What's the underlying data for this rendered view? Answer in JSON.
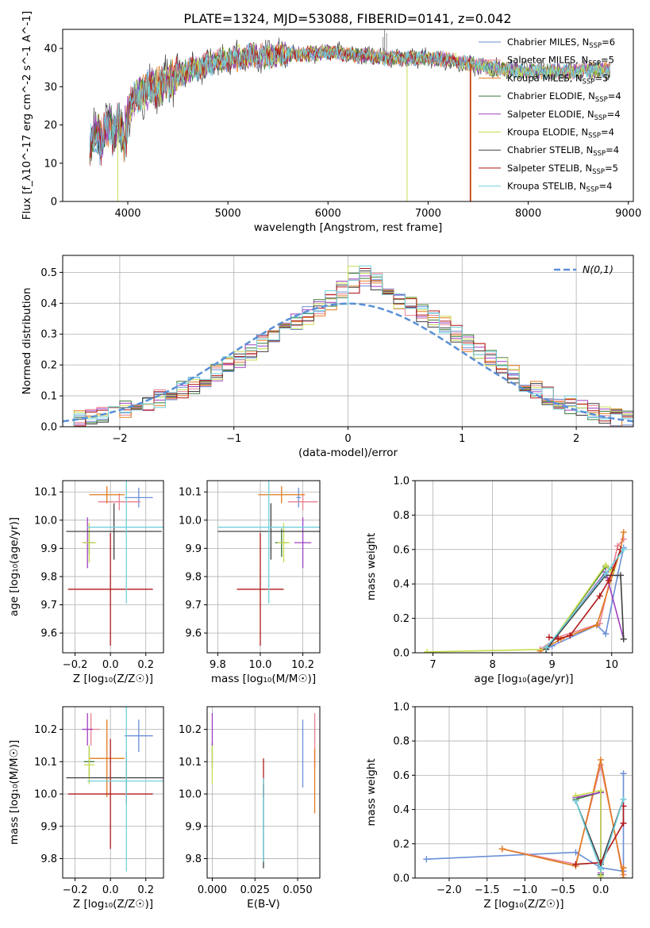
{
  "figure_title": "PLATE=1324, MJD=53088, FIBERID=0141, z=0.042",
  "colors": {
    "ch_miles": "#6a8fd6",
    "sa_miles": "#e8808f",
    "kr_miles": "#e07b20",
    "ch_elodie": "#3a7a3a",
    "sa_elodie": "#a040c0",
    "kr_elodie": "#c8dc50",
    "ch_stelib": "#404040",
    "sa_stelib": "#b01818",
    "kr_stelib": "#70d0dc",
    "normal": "#5a8fd6"
  },
  "chart_data": [
    {
      "type": "line",
      "id": "spectrum",
      "xlabel": "wavelength [Angstrom, rest frame]",
      "ylabel": "Flux [f_λ10^-17 erg cm^-2 s^-1 A^-1]",
      "xlim": [
        3350,
        9050
      ],
      "ylim": [
        0,
        45
      ],
      "xticks": [
        4000,
        5000,
        6000,
        7000,
        8000,
        9000
      ],
      "yticks": [
        0,
        10,
        20,
        30,
        40
      ],
      "grid": false,
      "legend_position": "upper-right",
      "series": [
        {
          "key": "ch_miles",
          "name": "Chabrier MILES, N_SSP=6",
          "label_main": "Chabrier MILES, N",
          "label_sub": "SSP",
          "label_tail": "=6"
        },
        {
          "key": "sa_miles",
          "name": "Salpeter MILES, N_SSP=5",
          "label_main": "Salpeter MILES, N",
          "label_sub": "SSP",
          "label_tail": "=5"
        },
        {
          "key": "kr_miles",
          "name": "Kroupa MILES, N_SSP=5",
          "label_main": "Kroupa MILES, N",
          "label_sub": "SSP",
          "label_tail": "=5"
        },
        {
          "key": "ch_elodie",
          "name": "Chabrier ELODIE, N_SSP=4",
          "label_main": "Chabrier ELODIE, N",
          "label_sub": "SSP",
          "label_tail": "=4"
        },
        {
          "key": "sa_elodie",
          "name": "Salpeter ELODIE, N_SSP=4",
          "label_main": "Salpeter ELODIE, N",
          "label_sub": "SSP",
          "label_tail": "=4"
        },
        {
          "key": "kr_elodie",
          "name": "Kroupa ELODIE, N_SSP=4",
          "label_main": "Kroupa ELODIE, N",
          "label_sub": "SSP",
          "label_tail": "=4"
        },
        {
          "key": "ch_stelib",
          "name": "Chabrier STELIB, N_SSP=4",
          "label_main": "Chabrier STELIB, N",
          "label_sub": "SSP",
          "label_tail": "=4"
        },
        {
          "key": "sa_stelib",
          "name": "Salpeter STELIB, N_SSP=5",
          "label_main": "Salpeter STELIB, N",
          "label_sub": "SSP",
          "label_tail": "=5"
        },
        {
          "key": "kr_stelib",
          "name": "Kroupa STELIB, N_SSP=4",
          "label_main": "Kroupa STELIB, N",
          "label_sub": "SSP",
          "label_tail": "=4"
        }
      ],
      "continuum": {
        "wavelength": [
          3620,
          3700,
          3800,
          3900,
          3950,
          4000,
          4100,
          4200,
          4300,
          4400,
          4500,
          4600,
          4800,
          5000,
          5200,
          5400,
          5600,
          5800,
          6000,
          6200,
          6400,
          6600,
          6800,
          7000,
          7200,
          7400,
          7600,
          7800,
          8000,
          8200,
          8400,
          8600,
          8820
        ],
        "flux": [
          17,
          18,
          19,
          21,
          16,
          24,
          28,
          29,
          30,
          31,
          33,
          34,
          36,
          37,
          38,
          38,
          38.5,
          38.5,
          39,
          38.5,
          38,
          37.5,
          37.5,
          37.5,
          37,
          36,
          35,
          34.5,
          34,
          34,
          34,
          34.5,
          34.5
        ]
      },
      "wavelength_range": [
        3620,
        8820
      ],
      "model_cutoffs": {
        "kr_elodie_start": 3900,
        "kr_elodie_gap": 6790,
        "sa_stelib_end": 7420
      }
    },
    {
      "type": "bar",
      "id": "residuals",
      "xlabel": "(data-model)/error",
      "ylabel": "Normed distribution",
      "xlim": [
        -2.5,
        2.5
      ],
      "ylim": [
        0,
        0.555
      ],
      "xticks": [
        -2,
        -1,
        0,
        1,
        2
      ],
      "yticks": [
        0.0,
        0.1,
        0.2,
        0.3,
        0.4,
        0.5
      ],
      "grid": true,
      "legend": "N(0,1)",
      "legend_position": "upper-right",
      "bin_edges": [
        -2.5,
        -2.4,
        -2.3,
        -2.2,
        -2.1,
        -2.0,
        -1.9,
        -1.8,
        -1.7,
        -1.6,
        -1.5,
        -1.4,
        -1.3,
        -1.2,
        -1.1,
        -1.0,
        -0.9,
        -0.8,
        -0.7,
        -0.6,
        -0.5,
        -0.4,
        -0.3,
        -0.2,
        -0.1,
        0.0,
        0.1,
        0.2,
        0.3,
        0.4,
        0.5,
        0.6,
        0.7,
        0.8,
        0.9,
        1.0,
        1.1,
        1.2,
        1.3,
        1.4,
        1.5,
        1.6,
        1.7,
        1.8,
        1.9,
        2.0,
        2.1,
        2.2,
        2.3,
        2.4,
        2.5
      ],
      "density_profile": [
        0.025,
        0.03,
        0.035,
        0.04,
        0.045,
        0.055,
        0.065,
        0.075,
        0.09,
        0.105,
        0.12,
        0.135,
        0.155,
        0.175,
        0.2,
        0.22,
        0.245,
        0.27,
        0.3,
        0.32,
        0.34,
        0.36,
        0.385,
        0.41,
        0.43,
        0.46,
        0.47,
        0.46,
        0.44,
        0.41,
        0.39,
        0.37,
        0.35,
        0.33,
        0.3,
        0.27,
        0.25,
        0.22,
        0.2,
        0.17,
        0.14,
        0.12,
        0.1,
        0.085,
        0.07,
        0.055,
        0.045,
        0.04,
        0.03,
        0.025
      ]
    },
    {
      "type": "scatter",
      "id": "age_vs_Z",
      "xlabel": "Z [log₁₀(Z/Z☉)]",
      "ylabel": "age  [log₁₀(age/yr)]",
      "xlim": [
        -0.27,
        0.3
      ],
      "ylim": [
        9.53,
        10.14
      ],
      "xticks": [
        -0.2,
        0.0,
        0.2
      ],
      "yticks": [
        9.6,
        9.7,
        9.8,
        9.9,
        10.0,
        10.1
      ],
      "grid": true,
      "points": [
        {
          "key": "ch_miles",
          "x": 0.16,
          "y": 10.08,
          "xerr": 0.08,
          "yerr": 0.035
        },
        {
          "key": "sa_miles",
          "x": 0.05,
          "y": 10.065,
          "xerr": 0.12,
          "yerr": 0.03
        },
        {
          "key": "kr_miles",
          "x": -0.02,
          "y": 10.09,
          "xerr": 0.1,
          "yerr": 0.03
        },
        {
          "key": "ch_elodie",
          "x": -0.12,
          "y": 9.92,
          "xerr": 0.03,
          "yerr": 0.04
        },
        {
          "key": "sa_elodie",
          "x": -0.13,
          "y": 9.92,
          "xerr": 0.03,
          "yerr": 0.09
        },
        {
          "key": "kr_elodie",
          "x": -0.12,
          "y": 9.92,
          "xerr": 0.04,
          "yerr": 0.07
        },
        {
          "key": "ch_stelib",
          "x": 0.02,
          "y": 9.96,
          "xerr": 0.27,
          "yerr": 0.1
        },
        {
          "key": "sa_stelib",
          "x": 0.0,
          "y": 9.755,
          "xerr": 0.24,
          "yerr": 0.2
        },
        {
          "key": "kr_stelib",
          "x": 0.09,
          "y": 9.975,
          "xerr": 0.22,
          "yerr": 0.27
        }
      ]
    },
    {
      "type": "scatter",
      "id": "age_vs_mass",
      "xlabel": "mass [log₁₀(M/M☉)]",
      "ylabel": "",
      "xlim": [
        9.75,
        10.28
      ],
      "ylim": [
        9.53,
        10.14
      ],
      "xticks": [
        9.8,
        10.0,
        10.2
      ],
      "yticks": [
        9.6,
        9.7,
        9.8,
        9.9,
        10.0,
        10.1
      ],
      "grid": true,
      "points": [
        {
          "key": "ch_miles",
          "x": 10.18,
          "y": 10.08,
          "xerr": 0.01,
          "yerr": 0.035
        },
        {
          "key": "sa_miles",
          "x": 10.2,
          "y": 10.065,
          "xerr": 0.07,
          "yerr": 0.03
        },
        {
          "key": "kr_miles",
          "x": 10.1,
          "y": 10.09,
          "xerr": 0.11,
          "yerr": 0.03
        },
        {
          "key": "ch_elodie",
          "x": 10.1,
          "y": 9.92,
          "xerr": 0.03,
          "yerr": 0.05
        },
        {
          "key": "sa_elodie",
          "x": 10.2,
          "y": 9.92,
          "xerr": 0.04,
          "yerr": 0.09
        },
        {
          "key": "kr_elodie",
          "x": 10.11,
          "y": 9.92,
          "xerr": 0.03,
          "yerr": 0.07
        },
        {
          "key": "ch_stelib",
          "x": 10.05,
          "y": 9.96,
          "xerr": 0.25,
          "yerr": 0.1
        },
        {
          "key": "sa_stelib",
          "x": 10.0,
          "y": 9.755,
          "xerr": 0.11,
          "yerr": 0.2
        },
        {
          "key": "kr_stelib",
          "x": 10.04,
          "y": 9.975,
          "xerr": 0.24,
          "yerr": 0.27
        }
      ]
    },
    {
      "type": "line",
      "id": "massweight_vs_age",
      "xlabel": "age  [log₁₀(age/yr)]",
      "ylabel": "mass weight",
      "xlim": [
        6.7,
        10.35
      ],
      "ylim": [
        0,
        1.0
      ],
      "xticks": [
        7,
        8,
        9,
        10
      ],
      "yticks": [
        0.0,
        0.2,
        0.4,
        0.6,
        0.8,
        1.0
      ],
      "grid": true,
      "series": [
        {
          "key": "ch_miles",
          "x": [
            8.9,
            9.0,
            9.75,
            9.9,
            10.1,
            10.2
          ],
          "y": [
            0.02,
            0.04,
            0.16,
            0.11,
            0.45,
            0.61
          ]
        },
        {
          "key": "sa_miles",
          "x": [
            8.8,
            9.1,
            9.8,
            10.1,
            10.2
          ],
          "y": [
            0.02,
            0.09,
            0.17,
            0.62,
            0.66
          ]
        },
        {
          "key": "kr_miles",
          "x": [
            8.8,
            9.15,
            9.75,
            10.15,
            10.2
          ],
          "y": [
            0.01,
            0.08,
            0.16,
            0.6,
            0.7
          ]
        },
        {
          "key": "ch_elodie",
          "x": [
            8.9,
            9.9,
            10.0
          ],
          "y": [
            0.02,
            0.5,
            0.48
          ]
        },
        {
          "key": "sa_elodie",
          "x": [
            8.9,
            9.9,
            10.2
          ],
          "y": [
            0.02,
            0.47,
            0.08
          ]
        },
        {
          "key": "kr_elodie",
          "x": [
            6.9,
            8.9,
            9.9,
            10.0
          ],
          "y": [
            0.005,
            0.02,
            0.51,
            0.47
          ]
        },
        {
          "key": "ch_stelib",
          "x": [
            8.9,
            9.9,
            10.15,
            10.2
          ],
          "y": [
            0.02,
            0.45,
            0.45,
            0.08
          ]
        },
        {
          "key": "sa_stelib",
          "x": [
            8.95,
            9.1,
            9.3,
            9.8,
            9.95,
            10.15
          ],
          "y": [
            0.09,
            0.08,
            0.1,
            0.33,
            0.42,
            0.6
          ]
        },
        {
          "key": "kr_stelib",
          "x": [
            8.9,
            9.9,
            10.2
          ],
          "y": [
            0.03,
            0.46,
            0.6
          ]
        }
      ]
    },
    {
      "type": "scatter",
      "id": "mass_vs_Z",
      "xlabel": "Z [log₁₀(Z/Z☉)]",
      "ylabel": "mass [log₁₀(M/M☉)]",
      "xlim": [
        -0.27,
        0.3
      ],
      "ylim": [
        9.74,
        10.27
      ],
      "xticks": [
        -0.2,
        0.0,
        0.2
      ],
      "yticks": [
        9.8,
        9.9,
        10.0,
        10.1,
        10.2
      ],
      "grid": true,
      "points": [
        {
          "key": "ch_miles",
          "x": 0.16,
          "y": 10.18,
          "xerr": 0.08,
          "yerr": 0.05
        },
        {
          "key": "sa_miles",
          "x": -0.11,
          "y": 10.2,
          "xerr": 0.05,
          "yerr": 0.05
        },
        {
          "key": "kr_miles",
          "x": -0.02,
          "y": 10.11,
          "xerr": 0.1,
          "yerr": 0.12
        },
        {
          "key": "ch_elodie",
          "x": -0.12,
          "y": 10.1,
          "xerr": 0.03,
          "yerr": 0.05
        },
        {
          "key": "sa_elodie",
          "x": -0.13,
          "y": 10.2,
          "xerr": 0.03,
          "yerr": 0.05
        },
        {
          "key": "kr_elodie",
          "x": -0.12,
          "y": 10.09,
          "xerr": 0.03,
          "yerr": 0.06
        },
        {
          "key": "ch_stelib",
          "x": 0.09,
          "y": 10.05,
          "xerr": 0.34,
          "yerr": 0.08
        },
        {
          "key": "sa_stelib",
          "x": 0.0,
          "y": 10.0,
          "xerr": 0.24,
          "yerr": 0.17
        },
        {
          "key": "kr_stelib",
          "x": 0.09,
          "y": 10.04,
          "xerr": 0.22,
          "yerr": 0.28
        }
      ]
    },
    {
      "type": "scatter",
      "id": "mass_vs_ebv",
      "xlabel": "E(B-V)",
      "ylabel": "",
      "xlim": [
        -0.003,
        0.063
      ],
      "ylim": [
        9.74,
        10.27
      ],
      "xticks": [
        0.0,
        0.025,
        0.05
      ],
      "xticklabels": [
        "0.000",
        "0.025",
        "0.050"
      ],
      "yticks": [
        9.8,
        9.9,
        10.0,
        10.1,
        10.2
      ],
      "grid": true,
      "points": [
        {
          "key": "ch_miles",
          "x": 0.053,
          "y": 10.125,
          "xerr": 0,
          "yerr": 0.105
        },
        {
          "key": "sa_miles",
          "x": 0.06,
          "y": 10.165,
          "xerr": 0,
          "yerr": 0.085
        },
        {
          "key": "kr_miles",
          "x": 0.06,
          "y": 10.04,
          "xerr": 0,
          "yerr": 0.1
        },
        {
          "key": "ch_elodie",
          "x": 0.0,
          "y": 10.12,
          "xerr": 0,
          "yerr": 0.04
        },
        {
          "key": "sa_elodie",
          "x": 0.0,
          "y": 10.2,
          "xerr": 0,
          "yerr": 0.05
        },
        {
          "key": "kr_elodie",
          "x": 0.0,
          "y": 10.09,
          "xerr": 0,
          "yerr": 0.06
        },
        {
          "key": "ch_stelib",
          "x": 0.03,
          "y": 9.9,
          "xerr": 0,
          "yerr": 0.13
        },
        {
          "key": "sa_stelib",
          "x": 0.03,
          "y": 10.05,
          "xerr": 0,
          "yerr": 0.06
        },
        {
          "key": "kr_stelib",
          "x": 0.03,
          "y": 9.92,
          "xerr": 0,
          "yerr": 0.13
        }
      ]
    },
    {
      "type": "line",
      "id": "massweight_vs_Z",
      "xlabel": "Z [log₁₀(Z/Z☉)]",
      "ylabel": "mass weight",
      "xlim": [
        -2.45,
        0.42
      ],
      "ylim": [
        0,
        1.0
      ],
      "xticks": [
        -2.0,
        -1.5,
        -1.0,
        -0.5,
        0.0
      ],
      "yticks": [
        0.0,
        0.2,
        0.4,
        0.6,
        0.8,
        1.0
      ],
      "grid": true,
      "series": [
        {
          "key": "ch_miles",
          "x": [
            -2.3,
            -0.33,
            0.0,
            0.3,
            0.3
          ],
          "y": [
            0.11,
            0.15,
            0.06,
            0.04,
            0.61
          ]
        },
        {
          "key": "sa_miles",
          "x": [
            -1.3,
            -0.33,
            0.0,
            0.3,
            0.3
          ],
          "y": [
            0.17,
            0.08,
            0.66,
            0.02,
            0.06
          ]
        },
        {
          "key": "kr_miles",
          "x": [
            -1.3,
            -0.33,
            0.0,
            0.3,
            0.3
          ],
          "y": [
            0.17,
            0.07,
            0.69,
            0.0,
            0.06
          ]
        },
        {
          "key": "ch_elodie",
          "x": [
            -0.33,
            0.0,
            0.0
          ],
          "y": [
            0.46,
            0.5,
            0.02
          ]
        },
        {
          "key": "sa_elodie",
          "x": [
            -0.33,
            0.0,
            0.0
          ],
          "y": [
            0.47,
            0.5,
            0.03
          ]
        },
        {
          "key": "kr_elodie",
          "x": [
            -0.33,
            0.0,
            0.0
          ],
          "y": [
            0.48,
            0.51,
            0.01
          ]
        },
        {
          "key": "ch_stelib",
          "x": [
            -0.33,
            0.0,
            0.3
          ],
          "y": [
            0.45,
            0.08,
            0.46
          ]
        },
        {
          "key": "sa_stelib",
          "x": [
            -0.33,
            0.0,
            0.3,
            0.3
          ],
          "y": [
            0.08,
            0.09,
            0.32,
            0.42
          ]
        },
        {
          "key": "kr_stelib",
          "x": [
            -0.33,
            0.0,
            0.3
          ],
          "y": [
            0.45,
            0.05,
            0.46
          ]
        }
      ]
    }
  ]
}
